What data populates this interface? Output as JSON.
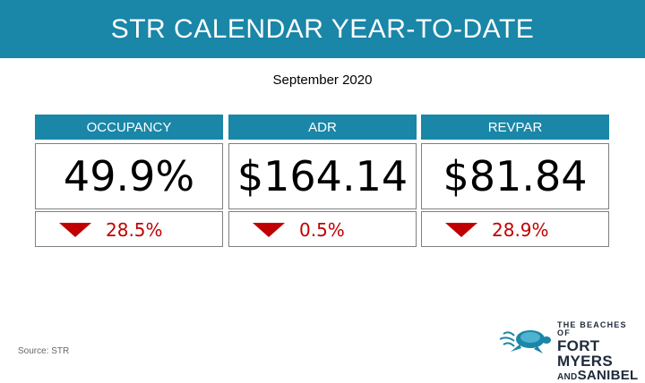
{
  "header": {
    "title": "STR CALENDAR YEAR-TO-DATE"
  },
  "subtitle": "September 2020",
  "metrics": [
    {
      "label": "OCCUPANCY",
      "value": "49.9%",
      "change": "28.5%",
      "direction": "down"
    },
    {
      "label": "ADR",
      "value": "$164.14",
      "change": "0.5%",
      "direction": "down"
    },
    {
      "label": "REVPAR",
      "value": "$81.84",
      "change": "28.9%",
      "direction": "down"
    }
  ],
  "source": "Source: STR",
  "logo": {
    "line1": "THE BEACHES OF",
    "line2": "FORT MYERS",
    "line3_prefix": "AND",
    "line3": "SANIBEL"
  },
  "colors": {
    "header_bg": "#1a86a8",
    "down_arrow": "#c00000",
    "change_text": "#c00000"
  }
}
